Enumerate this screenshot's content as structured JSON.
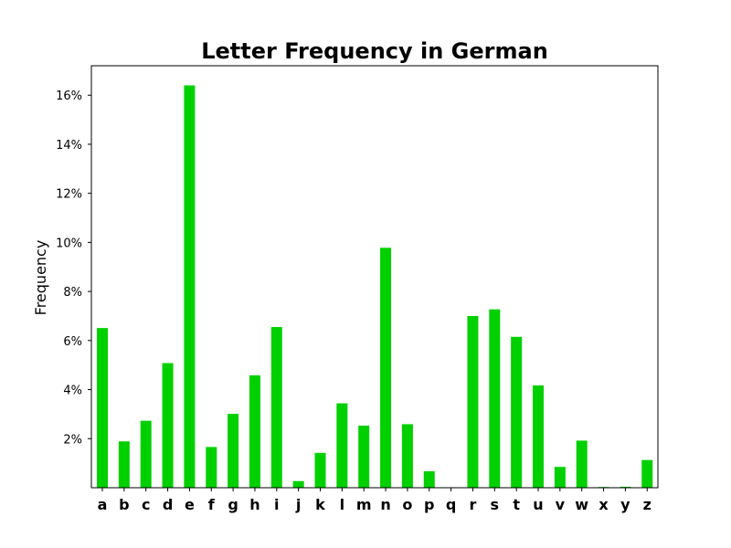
{
  "chart_data": {
    "type": "bar",
    "title": "Letter Frequency in German",
    "xlabel": "",
    "ylabel": "Frequency",
    "ylim": [
      0,
      17.2
    ],
    "yticks": [
      2,
      4,
      6,
      8,
      10,
      12,
      14,
      16
    ],
    "ytick_labels": [
      "2%",
      "4%",
      "6%",
      "8%",
      "10%",
      "12%",
      "14%",
      "16%"
    ],
    "categories": [
      "a",
      "b",
      "c",
      "d",
      "e",
      "f",
      "g",
      "h",
      "i",
      "j",
      "k",
      "l",
      "m",
      "n",
      "o",
      "p",
      "q",
      "r",
      "s",
      "t",
      "u",
      "v",
      "w",
      "x",
      "y",
      "z"
    ],
    "values": [
      6.51,
      1.89,
      2.73,
      5.08,
      16.4,
      1.66,
      3.01,
      4.58,
      6.55,
      0.27,
      1.42,
      3.44,
      2.53,
      9.78,
      2.59,
      0.67,
      0.02,
      7.0,
      7.27,
      6.15,
      4.17,
      0.85,
      1.92,
      0.03,
      0.04,
      1.13
    ],
    "bar_color": "#00d000",
    "grid": false,
    "legend": "none"
  }
}
